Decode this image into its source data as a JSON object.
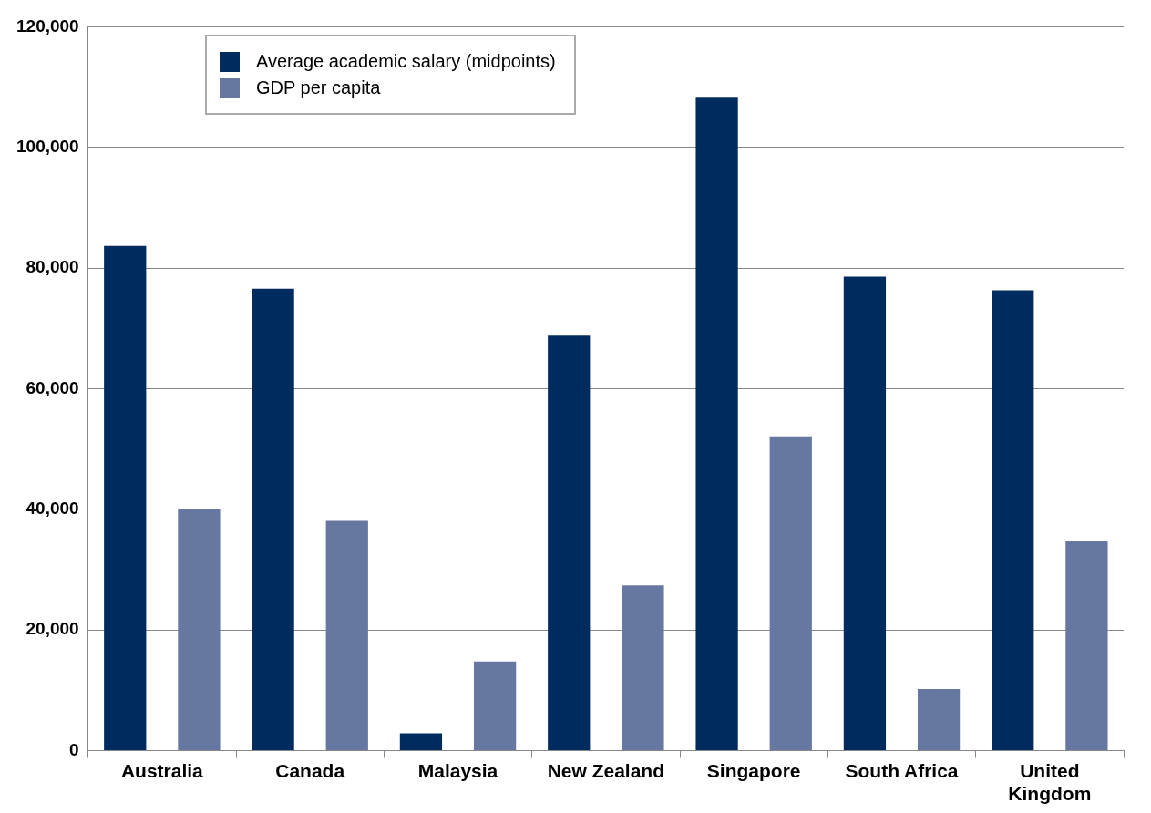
{
  "chart_data": {
    "type": "bar",
    "categories": [
      "Australia",
      "Canada",
      "Malaysia",
      "New Zealand",
      "Singapore",
      "South Africa",
      "United Kingdom"
    ],
    "series": [
      {
        "name": "Average academic salary (midpoints)",
        "color": "#002b5e",
        "values": [
          83700,
          76600,
          2900,
          68800,
          108400,
          78600,
          76300
        ]
      },
      {
        "name": "GDP per capita",
        "color": "#6677a2",
        "values": [
          40000,
          38100,
          14800,
          27400,
          52100,
          10200,
          34700
        ]
      }
    ],
    "ylim": [
      0,
      120000
    ],
    "yticks": [
      {
        "value": 0,
        "label": "0"
      },
      {
        "value": 20000,
        "label": "20,000"
      },
      {
        "value": 40000,
        "label": "40,000"
      },
      {
        "value": 60000,
        "label": "60,000"
      },
      {
        "value": 80000,
        "label": "80,000"
      },
      {
        "value": 100000,
        "label": "100,000"
      },
      {
        "value": 120000,
        "label": "120,000"
      }
    ],
    "grid": "y",
    "legend": "top left"
  }
}
